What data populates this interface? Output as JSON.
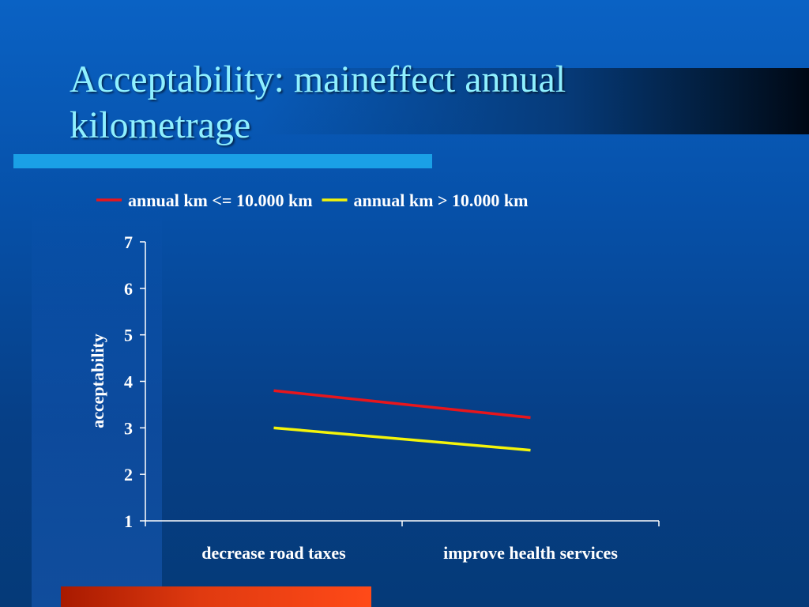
{
  "slide": {
    "title": "Acceptability: maineffect annual kilometrage"
  },
  "colors": {
    "background": "#0650a8",
    "title": "#8ff0ff",
    "series_red": "#e8161c",
    "series_yellow": "#f4f40a",
    "axis": "#ffffff"
  },
  "chart_data": {
    "type": "line",
    "categories": [
      "decrease road taxes",
      "improve health services"
    ],
    "series": [
      {
        "name": "annual km <= 10.000 km",
        "color": "#e8161c",
        "values": [
          3.8,
          3.22
        ]
      },
      {
        "name": "annual km > 10.000 km",
        "color": "#f4f40a",
        "values": [
          3.0,
          2.52
        ]
      }
    ],
    "title": "",
    "xlabel": "",
    "ylabel": "acceptability",
    "ylim": [
      1,
      7
    ],
    "yticks": [
      1,
      2,
      3,
      4,
      5,
      6,
      7
    ],
    "grid": false,
    "legend_position": "top"
  }
}
